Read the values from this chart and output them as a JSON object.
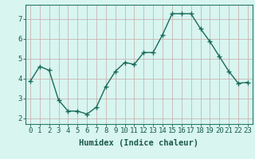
{
  "x": [
    0,
    1,
    2,
    3,
    4,
    5,
    6,
    7,
    8,
    9,
    10,
    11,
    12,
    13,
    14,
    15,
    16,
    17,
    18,
    19,
    20,
    21,
    22,
    23
  ],
  "y": [
    3.85,
    4.6,
    4.4,
    2.9,
    2.35,
    2.35,
    2.2,
    2.55,
    3.6,
    4.35,
    4.8,
    4.7,
    5.3,
    5.3,
    6.2,
    7.25,
    7.25,
    7.25,
    6.5,
    5.85,
    5.1,
    4.35,
    3.75,
    3.8
  ],
  "line_color": "#1a6b5a",
  "marker": "+",
  "marker_size": 4,
  "marker_linewidth": 1.0,
  "linewidth": 1.0,
  "xlabel": "Humidex (Indice chaleur)",
  "bg_color": "#d8f5f0",
  "grid_color": "#c8a8a8",
  "axis_color": "#2a7a66",
  "tick_color": "#1a5a4a",
  "ylim": [
    1.7,
    7.7
  ],
  "xlim": [
    -0.5,
    23.5
  ],
  "yticks": [
    2,
    3,
    4,
    5,
    6,
    7
  ],
  "xticks": [
    0,
    1,
    2,
    3,
    4,
    5,
    6,
    7,
    8,
    9,
    10,
    11,
    12,
    13,
    14,
    15,
    16,
    17,
    18,
    19,
    20,
    21,
    22,
    23
  ],
  "tick_fontsize": 6.5,
  "label_fontsize": 7.5
}
